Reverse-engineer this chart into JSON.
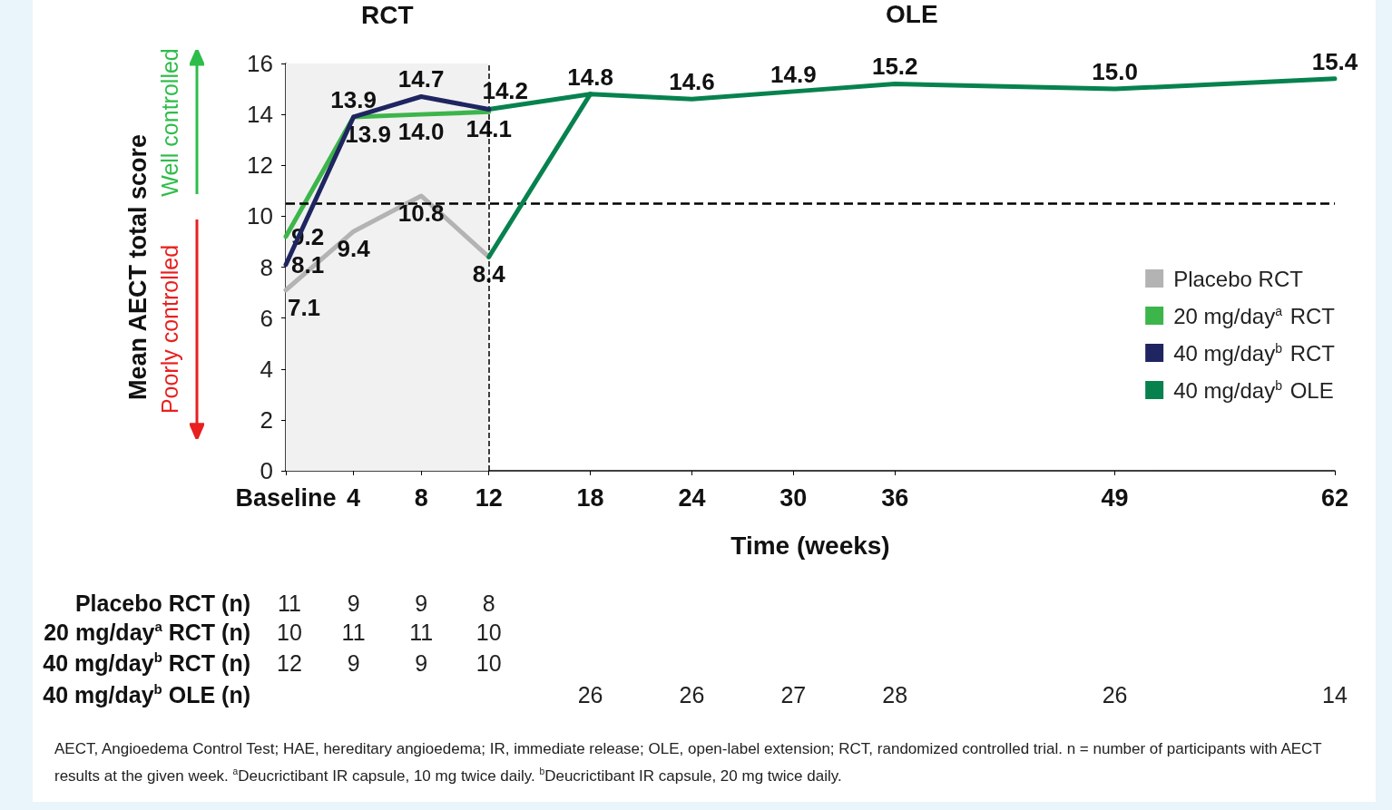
{
  "chart_data": {
    "type": "line",
    "xlabel": "Time (weeks)",
    "ylabel": "Mean AECT total score",
    "xlim": [
      0,
      62
    ],
    "xticks": [
      {
        "value": 0,
        "label": "Baseline"
      },
      4,
      8,
      12,
      18,
      24,
      30,
      36,
      49,
      62
    ],
    "ylim": [
      0,
      16
    ],
    "yticks": [
      0,
      2,
      4,
      6,
      8,
      10,
      12,
      14,
      16
    ],
    "grid": false,
    "legend": "right",
    "marker": "none",
    "line_style": "solid",
    "series": [
      {
        "name": "Placebo RCT",
        "color": "#b3b3b3",
        "x": [
          0,
          4,
          8,
          12
        ],
        "values": [
          7.1,
          9.4,
          10.8,
          8.4
        ],
        "value_labels": [
          "7.1",
          "9.4",
          "10.8",
          "8.4"
        ]
      },
      {
        "name": "20 mg/day$^{a}$ RCT",
        "color": "#3cb54a",
        "x": [
          0,
          4,
          8,
          12
        ],
        "values": [
          9.2,
          13.9,
          14.0,
          14.1
        ],
        "value_labels": [
          "9.2",
          "13.9",
          "14.0",
          "14.1"
        ]
      },
      {
        "name": "40 mg/day$^{b}$ RCT",
        "color": "#1f2560",
        "x": [
          0,
          4,
          8,
          12
        ],
        "values": [
          8.1,
          13.9,
          14.7,
          14.2
        ],
        "value_labels": [
          "8.1",
          "13.9",
          "14.7",
          "14.2"
        ]
      },
      {
        "name": "40 mg/day$^{b}$ OLE",
        "color": "#07824e",
        "x": [
          12,
          18,
          24,
          30,
          36,
          49,
          62
        ],
        "values": [
          14.2,
          14.8,
          14.6,
          14.9,
          15.2,
          15.0,
          15.4
        ],
        "value_labels": [
          null,
          "14.8",
          "14.6",
          "14.9",
          "15.2",
          "15.0",
          "15.4"
        ]
      },
      {
        "color": "#07824e",
        "x": [
          12,
          18
        ],
        "values": [
          8.4,
          14.8
        ]
      }
    ],
    "ref_lines": [
      {
        "axis": "x",
        "value": 12,
        "line_style": "dashed",
        "color": "#000000"
      },
      {
        "axis": "y",
        "value": 10.5,
        "line_style": "dashed",
        "color": "#000000"
      }
    ],
    "bands": [
      {
        "axis": "x",
        "from": 0,
        "to": 12,
        "label": "RCT",
        "color": "#f1f1f1"
      }
    ],
    "annotations": [
      "Well controlled",
      "Poorly controlled",
      "OLE",
      "Placebo RCT (n)",
      "11",
      "9",
      "9",
      "8",
      "20 mg/day$^{a}$ RCT (n)",
      "10",
      "11",
      "11",
      "10",
      "40 mg/day$^{b}$ RCT (n)",
      "12",
      "9",
      "9",
      "10",
      "40 mg/day$^{b}$ OLE (n)",
      "26",
      "26",
      "27",
      "28",
      "26",
      "14",
      "AECT, Angioedema Control Test; HAE, hereditary angioedema; IR, immediate release; OLE, open-label extension; RCT, randomized controlled trial. n = number of participants with AECT results at the given week. $^{a}$Deucrictibant IR capsule, 10 mg twice daily. $^{b}$Deucrictibant IR capsule, 20 mg twice daily."
    ]
  }
}
